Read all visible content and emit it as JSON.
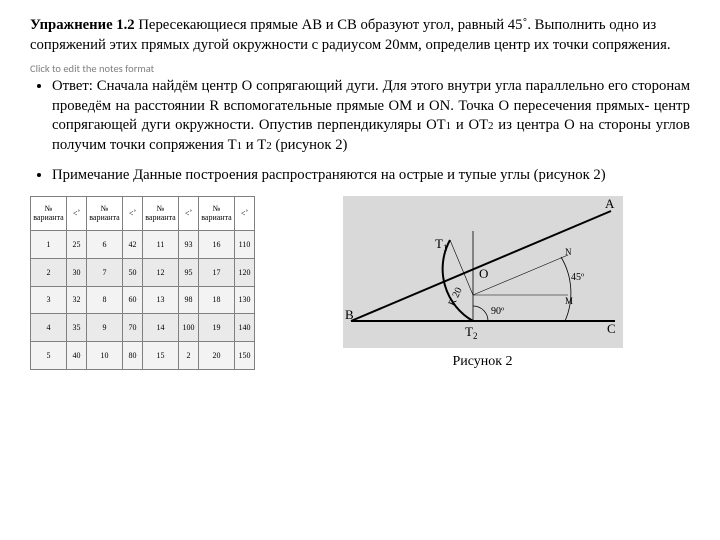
{
  "exercise": {
    "label": "Упражнение 1.2",
    "text": "Пересекающиеся прямые АВ и СВ образуют угол, равный 45˚. Выполнить одно из сопряжений этих прямых дугой окружности с радиусом  20мм, определив центр их точки сопряжения."
  },
  "notes_placeholder": "Click to edit the notes format",
  "answer": {
    "label": "Ответ:",
    "text_before_sub1": "Сначала найдём центр О сопрягающий дуги. Для этого внутри угла параллельно его сторонам проведём на расстоянии R вспомогательные прямые ОМ и ОN. Точка О пересечения прямых- центр сопрягающей дуги окружности. Опустив перпендикуляры ОТ",
    "sub1": "1",
    "mid1": "  и ОТ",
    "sub2": "2",
    "mid2": "  из центра О на стороны углов получим точки сопряжения Т",
    "sub3": "1",
    "mid3": " и Т",
    "sub4": "2",
    "tail": " (рисунок 2)"
  },
  "note": {
    "label": "Примечание",
    "text": "Данные построения распространяются на острые и тупые углы (рисунок 2)"
  },
  "table": {
    "header_variant": "№ варианта",
    "header_angle": "<˚",
    "rows": [
      [
        "1",
        "25",
        "6",
        "42",
        "11",
        "93",
        "16",
        "110"
      ],
      [
        "2",
        "30",
        "7",
        "50",
        "12",
        "95",
        "17",
        "120"
      ],
      [
        "3",
        "32",
        "8",
        "60",
        "13",
        "98",
        "18",
        "130"
      ],
      [
        "4",
        "35",
        "9",
        "70",
        "14",
        "100",
        "19",
        "140"
      ],
      [
        "5",
        "40",
        "10",
        "80",
        "15",
        "2",
        "20",
        "150"
      ]
    ],
    "header_bg": "#ffffff",
    "row_bg_a": "#f3f3f3",
    "row_bg_b": "#eaeaea",
    "border_color": "#808080"
  },
  "figure": {
    "caption": "Рисунок 2",
    "bg": "#d9d9d9",
    "line_color": "#000000",
    "text_color": "#000000",
    "labels": {
      "A": "A",
      "B": "B",
      "C": "C",
      "O": "O",
      "T1": "T",
      "T1sub": "1",
      "T2": "T",
      "T2sub": "2",
      "N": "N",
      "M": "M",
      "ang45": "45º",
      "ang90": "90º",
      "R": "R 20"
    },
    "geometry_note": "45-degree angle between AB and CB, fillet arc radius 20"
  }
}
